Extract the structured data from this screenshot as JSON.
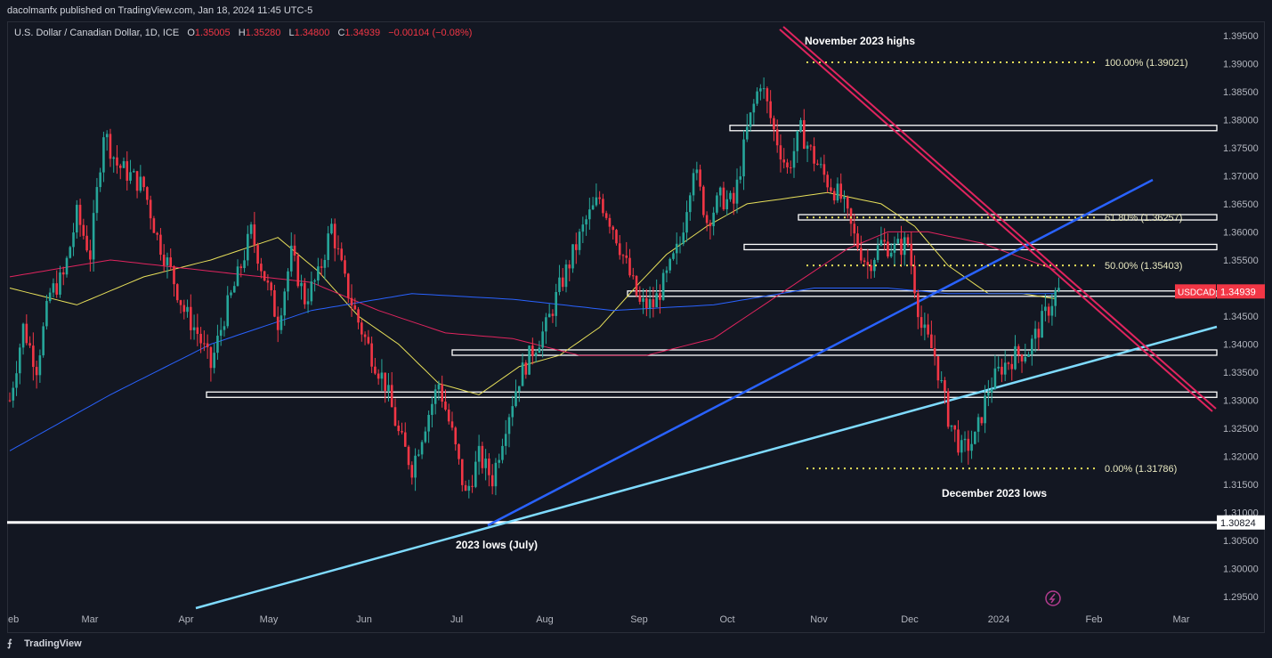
{
  "header": {
    "published": "dacolmanfx published on TradingView.com, Jan 18, 2024 11:45 UTC-5"
  },
  "legend": {
    "symbol": "U.S. Dollar / Canadian Dollar, 1D, ICE",
    "o_label": "O",
    "o": "1.35005",
    "h_label": "H",
    "h": "1.35280",
    "l_label": "L",
    "l": "1.34800",
    "c_label": "C",
    "c": "1.34939",
    "change": "−0.00104 (−0.08%)"
  },
  "footer": {
    "brand": "TradingView"
  },
  "colors": {
    "background": "#131722",
    "up": "#26a69a",
    "down": "#f23645",
    "ma_yellow": "#e8e05a",
    "ma_red": "#e0245e",
    "ma_blue": "#2962ff",
    "trend_blue": "#2962ff",
    "trend_cyan": "#7fdbff",
    "downtrend": "#e0245e"
  },
  "chart_data": {
    "type": "candlestick",
    "symbol": "USDCAD",
    "last_price": "1.34939",
    "ylim": [
      1.2925,
      1.3975
    ],
    "y_ticks": [
      "1.39500",
      "1.39000",
      "1.38500",
      "1.38000",
      "1.37500",
      "1.37000",
      "1.36500",
      "1.36000",
      "1.35500",
      "1.35000",
      "1.34500",
      "1.34000",
      "1.33500",
      "1.33000",
      "1.32500",
      "1.32000",
      "1.31500",
      "1.31000",
      "1.30500",
      "1.30000",
      "1.29500"
    ],
    "x_ticks": [
      "Feb",
      "Mar",
      "Apr",
      "May",
      "Jun",
      "Jul",
      "Aug",
      "Sep",
      "Oct",
      "Nov",
      "Dec",
      "2024",
      "Feb",
      "Mar"
    ],
    "x_first_partial": "eb",
    "close_path": [
      [
        0,
        1.33
      ],
      [
        4,
        1.343
      ],
      [
        8,
        1.336
      ],
      [
        12,
        1.349
      ],
      [
        16,
        1.352
      ],
      [
        20,
        1.363
      ],
      [
        24,
        1.356
      ],
      [
        28,
        1.378
      ],
      [
        32,
        1.372
      ],
      [
        36,
        1.37
      ],
      [
        40,
        1.368
      ],
      [
        44,
        1.359
      ],
      [
        48,
        1.353
      ],
      [
        52,
        1.346
      ],
      [
        56,
        1.342
      ],
      [
        60,
        1.336
      ],
      [
        64,
        1.345
      ],
      [
        68,
        1.352
      ],
      [
        72,
        1.36
      ],
      [
        76,
        1.352
      ],
      [
        80,
        1.344
      ],
      [
        84,
        1.356
      ],
      [
        88,
        1.348
      ],
      [
        92,
        1.352
      ],
      [
        96,
        1.361
      ],
      [
        100,
        1.351
      ],
      [
        104,
        1.344
      ],
      [
        108,
        1.338
      ],
      [
        112,
        1.333
      ],
      [
        116,
        1.324
      ],
      [
        120,
        1.318
      ],
      [
        124,
        1.326
      ],
      [
        128,
        1.333
      ],
      [
        132,
        1.324
      ],
      [
        136,
        1.313
      ],
      [
        140,
        1.32
      ],
      [
        144,
        1.316
      ],
      [
        148,
        1.326
      ],
      [
        152,
        1.334
      ],
      [
        156,
        1.339
      ],
      [
        160,
        1.343
      ],
      [
        164,
        1.35
      ],
      [
        168,
        1.356
      ],
      [
        172,
        1.362
      ],
      [
        176,
        1.366
      ],
      [
        180,
        1.361
      ],
      [
        184,
        1.354
      ],
      [
        188,
        1.347
      ],
      [
        192,
        1.347
      ],
      [
        196,
        1.352
      ],
      [
        200,
        1.358
      ],
      [
        204,
        1.372
      ],
      [
        208,
        1.362
      ],
      [
        212,
        1.366
      ],
      [
        216,
        1.365
      ],
      [
        220,
        1.378
      ],
      [
        224,
        1.387
      ],
      [
        228,
        1.378
      ],
      [
        232,
        1.371
      ],
      [
        236,
        1.378
      ],
      [
        240,
        1.373
      ],
      [
        244,
        1.369
      ],
      [
        248,
        1.366
      ],
      [
        252,
        1.359
      ],
      [
        256,
        1.354
      ],
      [
        260,
        1.358
      ],
      [
        264,
        1.357
      ],
      [
        268,
        1.358
      ],
      [
        272,
        1.343
      ],
      [
        276,
        1.338
      ],
      [
        280,
        1.327
      ],
      [
        284,
        1.321
      ],
      [
        288,
        1.323
      ],
      [
        292,
        1.332
      ],
      [
        296,
        1.336
      ],
      [
        300,
        1.338
      ],
      [
        304,
        1.339
      ],
      [
        308,
        1.344
      ],
      [
        312,
        1.349
      ],
      [
        313,
        1.34939
      ]
    ],
    "ma_yellow_50": [
      [
        0,
        1.35
      ],
      [
        20,
        1.347
      ],
      [
        40,
        1.352
      ],
      [
        60,
        1.355
      ],
      [
        80,
        1.359
      ],
      [
        92,
        1.353
      ],
      [
        104,
        1.345
      ],
      [
        116,
        1.34
      ],
      [
        128,
        1.333
      ],
      [
        140,
        1.331
      ],
      [
        152,
        1.336
      ],
      [
        164,
        1.338
      ],
      [
        176,
        1.343
      ],
      [
        188,
        1.351
      ],
      [
        196,
        1.356
      ],
      [
        208,
        1.361
      ],
      [
        220,
        1.365
      ],
      [
        232,
        1.366
      ],
      [
        244,
        1.367
      ],
      [
        252,
        1.366
      ],
      [
        260,
        1.365
      ],
      [
        270,
        1.361
      ],
      [
        280,
        1.354
      ],
      [
        292,
        1.349
      ],
      [
        302,
        1.349
      ],
      [
        313,
        1.348
      ]
    ],
    "ma_red_100": [
      [
        0,
        1.352
      ],
      [
        30,
        1.355
      ],
      [
        60,
        1.353
      ],
      [
        90,
        1.351
      ],
      [
        110,
        1.346
      ],
      [
        130,
        1.342
      ],
      [
        150,
        1.341
      ],
      [
        170,
        1.338
      ],
      [
        190,
        1.338
      ],
      [
        210,
        1.341
      ],
      [
        230,
        1.349
      ],
      [
        250,
        1.357
      ],
      [
        262,
        1.36
      ],
      [
        274,
        1.36
      ],
      [
        290,
        1.358
      ],
      [
        313,
        1.353
      ]
    ],
    "ma_blue_200": [
      [
        0,
        1.321
      ],
      [
        30,
        1.331
      ],
      [
        60,
        1.34
      ],
      [
        90,
        1.346
      ],
      [
        120,
        1.349
      ],
      [
        150,
        1.348
      ],
      [
        180,
        1.346
      ],
      [
        210,
        1.347
      ],
      [
        240,
        1.35
      ],
      [
        262,
        1.35
      ],
      [
        280,
        1.349
      ],
      [
        313,
        1.349
      ]
    ],
    "horizontal_levels": [
      1.3785,
      1.3626,
      1.3573,
      1.354,
      1.349,
      1.3385,
      1.331,
      1.30824
    ],
    "fibonacci": [
      {
        "label": "100.00% (1.39021)",
        "value": 1.39021
      },
      {
        "label": "61.80% (1.36257)",
        "value": 1.36257
      },
      {
        "label": "50.00% (1.35403)",
        "value": 1.35403
      },
      {
        "label": "0.00% (1.31786)",
        "value": 1.31786
      }
    ],
    "price_tag": {
      "label": "USDCAD",
      "value": "1.34939"
    },
    "level_tag": {
      "value": "1.30824"
    },
    "annotations": [
      "November 2023 highs",
      "December 2023 lows",
      "2023 lows (July)"
    ]
  }
}
